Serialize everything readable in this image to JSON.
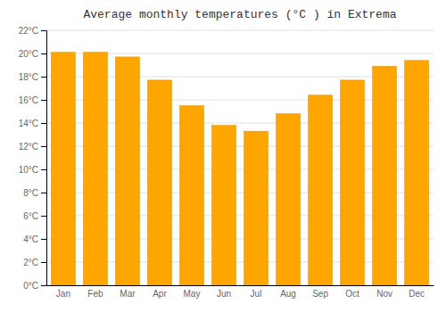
{
  "chart_data": {
    "type": "bar",
    "title": "Average monthly temperatures (°C ) in Extrema",
    "categories": [
      "Jan",
      "Feb",
      "Mar",
      "Apr",
      "May",
      "Jun",
      "Jul",
      "Aug",
      "Sep",
      "Oct",
      "Nov",
      "Dec"
    ],
    "values": [
      20.1,
      20.1,
      19.7,
      17.7,
      15.5,
      13.8,
      13.3,
      14.8,
      16.4,
      17.7,
      18.9,
      19.4
    ],
    "color": "#FFA500",
    "ylim": [
      0,
      22
    ],
    "yticks": [
      {
        "value": 0,
        "label": "0°C"
      },
      {
        "value": 2,
        "label": "2°C"
      },
      {
        "value": 4,
        "label": "4°C"
      },
      {
        "value": 6,
        "label": "6°C"
      },
      {
        "value": 8,
        "label": "8°C"
      },
      {
        "value": 10,
        "label": "10°C"
      },
      {
        "value": 12,
        "label": "12°C"
      },
      {
        "value": 14,
        "label": "14°C"
      },
      {
        "value": 16,
        "label": "16°C"
      },
      {
        "value": 18,
        "label": "18°C"
      },
      {
        "value": 20,
        "label": "20°C"
      },
      {
        "value": 22,
        "label": "22°C"
      }
    ],
    "grid": true
  }
}
